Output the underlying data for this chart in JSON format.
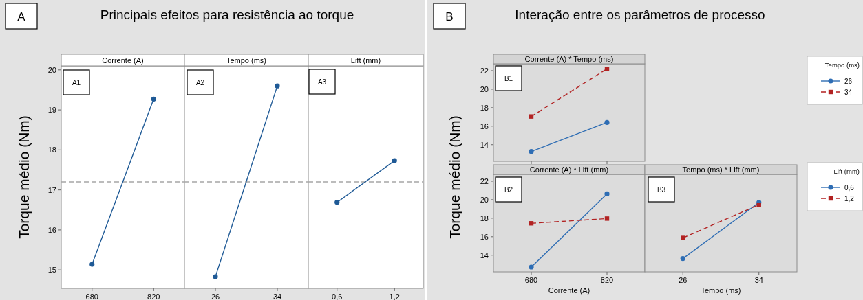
{
  "chart_data": [
    {
      "type": "line",
      "title": "Principais efeitos para resistência ao torque",
      "subtitle": "Corrente (A)",
      "ylabel": "Torque médio (Nm)",
      "categories": [
        "680",
        "820"
      ],
      "values": [
        15.14,
        19.27
      ],
      "color": "#1f5a96",
      "marker": "circle",
      "ylim": [
        14.54,
        20.1
      ],
      "yticks": [
        15,
        16,
        17,
        18,
        19,
        20
      ],
      "ref_lines": [
        {
          "axis": "y",
          "value": 17.2,
          "color": "#a6a6a6",
          "line_style": "dashed"
        }
      ],
      "annotations": [
        "A",
        "A1"
      ]
    },
    {
      "type": "line",
      "subtitle": "Tempo (ms)",
      "categories": [
        "26",
        "34"
      ],
      "values": [
        14.83,
        19.6
      ],
      "color": "#1f5a96",
      "marker": "circle",
      "ylim": [
        14.54,
        20.1
      ],
      "tick_labels": "x",
      "ref_lines": [
        {
          "axis": "y",
          "value": 17.2,
          "color": "#a6a6a6",
          "line_style": "dashed"
        }
      ],
      "annotations": [
        "A2"
      ]
    },
    {
      "type": "line",
      "subtitle": "Lift (mm)",
      "categories": [
        "0,6",
        "1,2"
      ],
      "values": [
        16.69,
        17.73
      ],
      "color": "#1f5a96",
      "marker": "circle",
      "ylim": [
        14.54,
        20.1
      ],
      "tick_labels": "x",
      "ref_lines": [
        {
          "axis": "y",
          "value": 17.2,
          "color": "#a6a6a6",
          "line_style": "dashed"
        }
      ],
      "annotations": [
        "A3"
      ]
    },
    {
      "type": "line",
      "title": "Interação entre os parâmetros de processo",
      "subtitle": "Corrente (A) * Tempo (ms)",
      "categories": [
        "680",
        "820"
      ],
      "series": [
        {
          "name": "26",
          "color": "#2e6db4",
          "values": [
            13.26,
            16.4
          ],
          "marker": "circle",
          "line_style": "solid"
        },
        {
          "name": "34",
          "color": "#b22222",
          "values": [
            17.05,
            22.2
          ],
          "marker": "square",
          "line_style": "dashed"
        }
      ],
      "ylim": [
        12.2,
        22.74
      ],
      "yticks": [
        14,
        16,
        18,
        20,
        22
      ],
      "tick_labels": "y",
      "legend": "right",
      "legend_title": "Tempo (ms)",
      "annotations": [
        "B",
        "B1"
      ]
    },
    {
      "type": "line",
      "subtitle": "Corrente (A) * Lift (mm)",
      "xlabel": "Corrente (A)",
      "ylabel": "Torque médio (Nm)",
      "categories": [
        "680",
        "820"
      ],
      "series": [
        {
          "color": "#2e6db4",
          "values": [
            12.72,
            20.63
          ],
          "marker": "circle",
          "line_style": "solid"
        },
        {
          "color": "#b22222",
          "values": [
            17.45,
            17.96
          ],
          "marker": "square",
          "line_style": "dashed"
        }
      ],
      "ylim": [
        12.2,
        22.74
      ],
      "yticks": [
        14,
        16,
        18,
        20,
        22
      ],
      "annotations": [
        "B2"
      ]
    },
    {
      "type": "line",
      "subtitle": "Tempo (ms) * Lift (mm)",
      "xlabel": "Tempo (ms)",
      "categories": [
        "26",
        "34"
      ],
      "series": [
        {
          "name": "0,6",
          "color": "#2e6db4",
          "values": [
            13.64,
            19.7
          ],
          "marker": "circle",
          "line_style": "solid"
        },
        {
          "name": "1,2",
          "color": "#b22222",
          "values": [
            15.87,
            19.46
          ],
          "marker": "square",
          "line_style": "dashed"
        }
      ],
      "ylim": [
        12.2,
        22.74
      ],
      "tick_labels": "x",
      "legend": "right",
      "legend_title": "Lift (mm)",
      "annotations": [
        "B3"
      ]
    }
  ]
}
